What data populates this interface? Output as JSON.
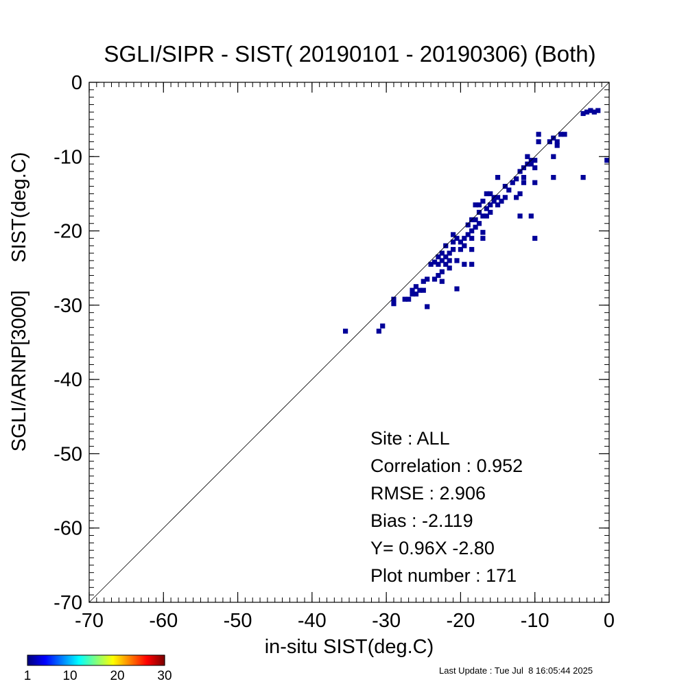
{
  "chart_data": {
    "type": "heatmap",
    "title": "SGLI/SIPR - SIST( 20190101 - 20190306) (Both)",
    "xlabel": "in-situ SIST(deg.C)",
    "ylabel": "SGLI/ARNP[3000]     SIST(deg.C)",
    "xlim": [
      -70,
      0
    ],
    "ylim": [
      -70,
      0
    ],
    "xticks": [
      -70,
      -60,
      -50,
      -40,
      -30,
      -20,
      -10,
      0
    ],
    "yticks": [
      0,
      -10,
      -20,
      -30,
      -40,
      -50,
      -60,
      -70
    ],
    "x_tick_labels": [
      "-70",
      "-60",
      "-50",
      "-40",
      "-30",
      "-20",
      "-10",
      "0"
    ],
    "y_tick_labels": [
      "0",
      "-10",
      "-20",
      "-30",
      "-40",
      "-50",
      "-60",
      "-70"
    ],
    "one_to_one_line": true,
    "grid": false,
    "bin_size": 1,
    "cell_color": "#000099",
    "cells": [
      [
        -35.5,
        -33.5
      ],
      [
        -31,
        -33.5
      ],
      [
        -30.5,
        -32.8
      ],
      [
        -29,
        -29.2
      ],
      [
        -29,
        -29.8
      ],
      [
        -27.5,
        -29.2
      ],
      [
        -27,
        -29.2
      ],
      [
        -26.5,
        -28.5
      ],
      [
        -26.5,
        -28
      ],
      [
        -26,
        -28.5
      ],
      [
        -26,
        -27.5
      ],
      [
        -25.5,
        -28
      ],
      [
        -25,
        -28
      ],
      [
        -24.5,
        -30.2
      ],
      [
        -25,
        -26.8
      ],
      [
        -24.5,
        -26.5
      ],
      [
        -23.5,
        -26.5
      ],
      [
        -23,
        -26
      ],
      [
        -24,
        -24.5
      ],
      [
        -23.5,
        -24.2
      ],
      [
        -23,
        -24.5
      ],
      [
        -22.5,
        -24
      ],
      [
        -22,
        -24.5
      ],
      [
        -23,
        -23.5
      ],
      [
        -22.5,
        -23
      ],
      [
        -22,
        -23.5
      ],
      [
        -21.5,
        -23
      ],
      [
        -21,
        -22.5
      ],
      [
        -21.5,
        -24
      ],
      [
        -22,
        -22
      ],
      [
        -21,
        -21.5
      ],
      [
        -20.5,
        -21
      ],
      [
        -20,
        -21.5
      ],
      [
        -22.5,
        -25.5
      ],
      [
        -21.5,
        -25
      ],
      [
        -22.5,
        -26.8
      ],
      [
        -20.5,
        -27.8
      ],
      [
        -21,
        -20.5
      ],
      [
        -20.5,
        -24
      ],
      [
        -19.5,
        -21
      ],
      [
        -19,
        -20.5
      ],
      [
        -18.5,
        -21
      ],
      [
        -18.5,
        -20
      ],
      [
        -19,
        -19.2
      ],
      [
        -18.5,
        -18.5
      ],
      [
        -18,
        -19.5
      ],
      [
        -18,
        -18.5
      ],
      [
        -17.5,
        -19
      ],
      [
        -17.5,
        -17.5
      ],
      [
        -17,
        -18
      ],
      [
        -17,
        -20.2
      ],
      [
        -19.5,
        -24.5
      ],
      [
        -18.5,
        -24.5
      ],
      [
        -20,
        -22.5
      ],
      [
        -19.5,
        -22
      ],
      [
        -18.5,
        -22.5
      ],
      [
        -18,
        -16.5
      ],
      [
        -17.5,
        -16.5
      ],
      [
        -16.5,
        -18
      ],
      [
        -16.5,
        -17
      ],
      [
        -17,
        -16
      ],
      [
        -16,
        -17.5
      ],
      [
        -16,
        -16.5
      ],
      [
        -15.5,
        -16
      ],
      [
        -15,
        -16.5
      ],
      [
        -15,
        -15.5
      ],
      [
        -14.5,
        -16
      ],
      [
        -14,
        -15.5
      ],
      [
        -16.5,
        -15
      ],
      [
        -15.5,
        -15.5
      ],
      [
        -16,
        -15
      ],
      [
        -17,
        -21
      ],
      [
        -15,
        -12.8
      ],
      [
        -14,
        -14
      ],
      [
        -13.5,
        -14.5
      ],
      [
        -13,
        -13.5
      ],
      [
        -12.5,
        -13
      ],
      [
        -12,
        -12
      ],
      [
        -11.5,
        -12.8
      ],
      [
        -11.5,
        -11.5
      ],
      [
        -11,
        -11
      ],
      [
        -10.5,
        -11
      ],
      [
        -10.5,
        -10.5
      ],
      [
        -10,
        -10.5
      ],
      [
        -10,
        -11.5
      ],
      [
        -11,
        -10
      ],
      [
        -12.5,
        -15.5
      ],
      [
        -12,
        -15
      ],
      [
        -11.5,
        -13.5
      ],
      [
        -12,
        -18
      ],
      [
        -10.5,
        -18
      ],
      [
        -10,
        -21
      ],
      [
        -10,
        -13.5
      ],
      [
        -9.5,
        -8
      ],
      [
        -9.5,
        -7
      ],
      [
        -8,
        -8
      ],
      [
        -7.5,
        -7.5
      ],
      [
        -7,
        -8.5
      ],
      [
        -7,
        -8
      ],
      [
        -6.5,
        -7
      ],
      [
        -6,
        -7
      ],
      [
        -7.5,
        -12.8
      ],
      [
        -7.5,
        -10
      ],
      [
        -3.5,
        -12.8
      ],
      [
        -3.5,
        -4.2
      ],
      [
        -3,
        -4
      ],
      [
        -2.5,
        -3.8
      ],
      [
        -2,
        -4
      ],
      [
        -1.5,
        -3.8
      ],
      [
        -0.3,
        -10.5
      ]
    ],
    "colorbar": {
      "min": 1,
      "max": 30,
      "tick_labels": [
        "1",
        "10",
        "20",
        "30"
      ],
      "tick_values": [
        1,
        10,
        20,
        30
      ],
      "colormap": "jet"
    },
    "annotations": [
      "Site : ALL",
      "Correlation :    0.952",
      "RMSE :    2.906",
      "Bias :   -2.119",
      "Y=   0.96X  -2.80",
      "Plot number :       171"
    ]
  },
  "footer": "Last Update : Tue Jul  8 16:05:44 2025"
}
